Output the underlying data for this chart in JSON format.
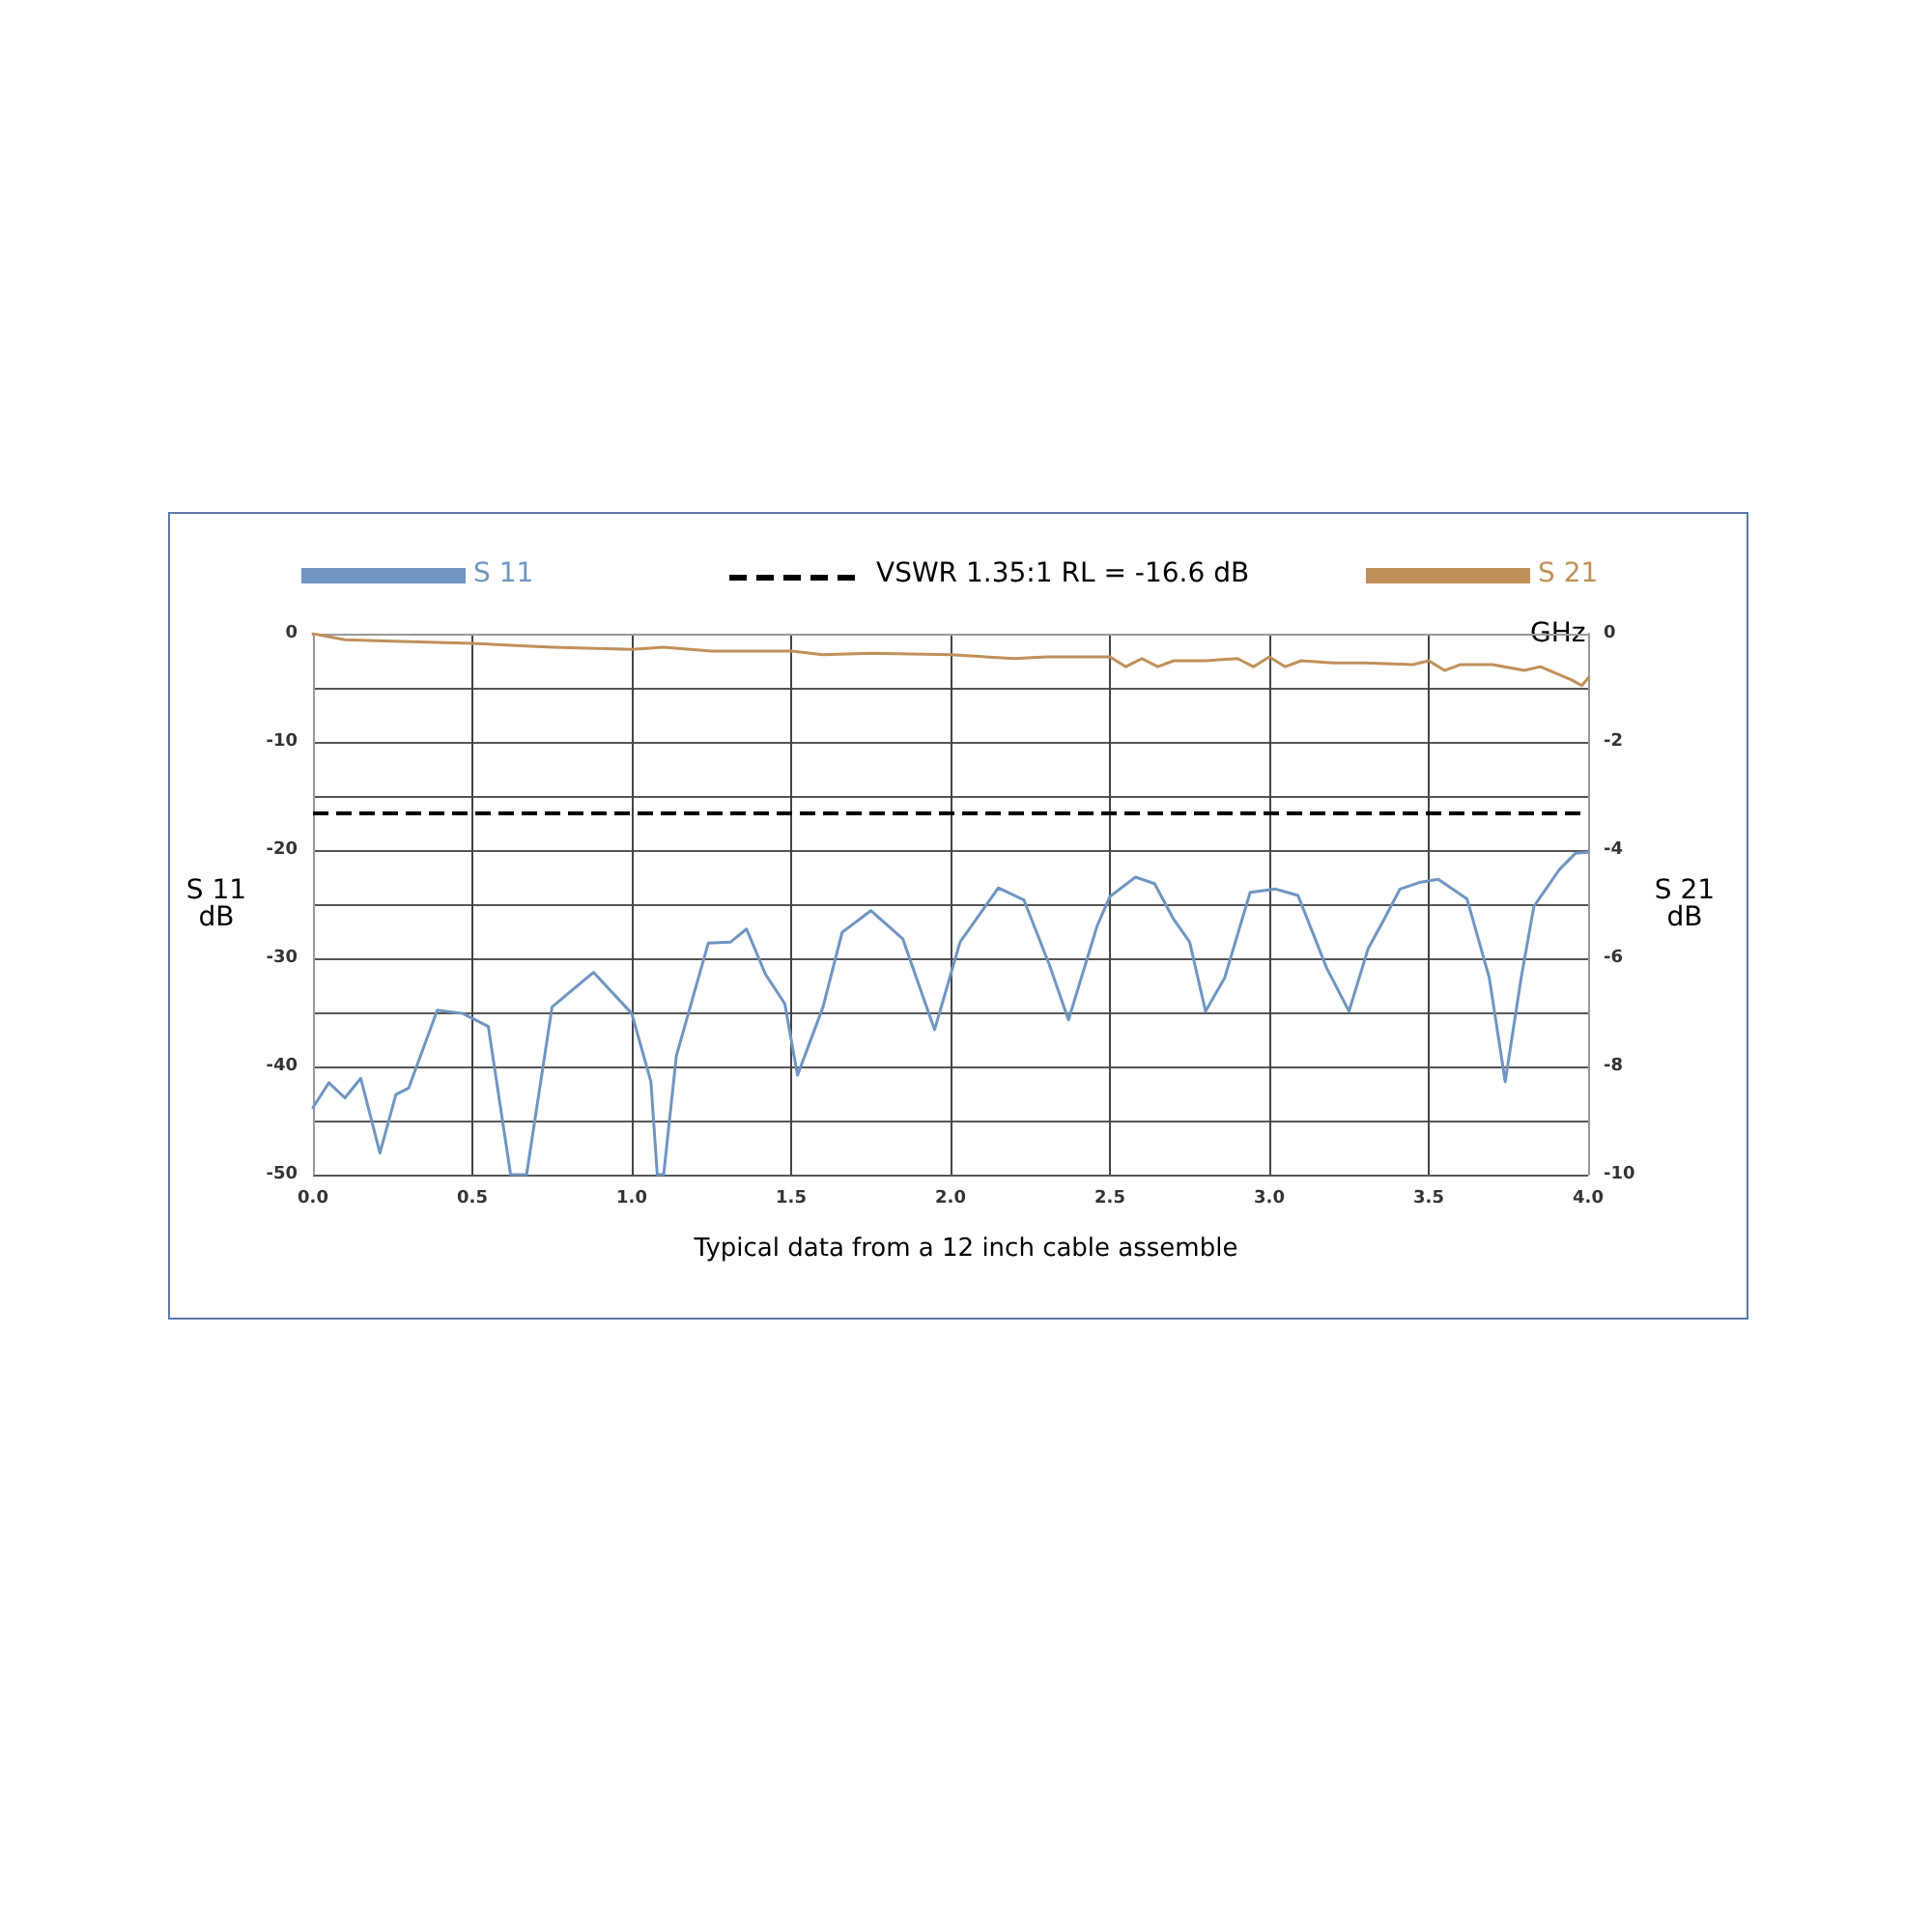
{
  "chart_data": {
    "type": "line",
    "xlabel": "GHz",
    "ylabel": "S 11\ndB",
    "y2label": "S 21\ndB",
    "annotations": [
      "Typical data from a 12 inch cable assemble"
    ],
    "xlim": [
      0,
      4
    ],
    "xticks": [
      {
        "value": 0,
        "label": "0.0"
      },
      0.5,
      {
        "value": 1,
        "label": "1.0"
      },
      1.5,
      {
        "value": 2,
        "label": "2.0"
      },
      2.5,
      {
        "value": 3,
        "label": "3.0"
      },
      3.5,
      {
        "value": 4,
        "label": "4.0"
      }
    ],
    "ylim": [
      -50,
      0
    ],
    "yticks": [
      -50,
      {
        "value": -45,
        "label": null
      },
      -40,
      {
        "value": -35,
        "label": null
      },
      -30,
      {
        "value": -25,
        "label": null
      },
      -20,
      {
        "value": -15,
        "label": null
      },
      -10,
      {
        "value": -5,
        "label": null
      },
      0
    ],
    "y2lim": [
      -10,
      0
    ],
    "y2ticks": [
      -10,
      -8,
      -6,
      -4,
      -2,
      0
    ],
    "grid": true,
    "legend": "top",
    "marker": "none",
    "line_style": "solid",
    "ref_lines": [
      {
        "axis": "y",
        "value": -16.6,
        "label": "VSWR 1.35:1 RL = -16.6 dB",
        "color": "#000000",
        "line_style": "dashed"
      }
    ],
    "series": [
      {
        "name": "S 11",
        "color": "#6f95c0",
        "x": [
          0,
          0.05,
          0.1,
          0.15,
          0.21,
          0.26,
          0.3,
          0.39,
          0.47,
          0.55,
          0.62,
          0.67,
          0.75,
          0.88,
          1.0,
          1.06,
          1.08,
          1.1,
          1.14,
          1.24,
          1.31,
          1.36,
          1.42,
          1.48,
          1.52,
          1.6,
          1.66,
          1.75,
          1.85,
          1.95,
          2.03,
          2.15,
          2.23,
          2.31,
          2.37,
          2.46,
          2.5,
          2.58,
          2.64,
          2.7,
          2.75,
          2.8,
          2.86,
          2.94,
          3.02,
          3.09,
          3.18,
          3.25,
          3.31,
          3.36,
          3.41,
          3.47,
          3.53,
          3.62,
          3.69,
          3.74,
          3.79,
          3.83,
          3.91,
          3.96,
          4.0
        ],
        "values": [
          -43.8,
          -41.5,
          -42.9,
          -41.1,
          -48,
          -42.6,
          -42,
          -34.8,
          -35.1,
          -36.3,
          -50,
          -50,
          -34.5,
          -31.3,
          -35.1,
          -41.4,
          -50,
          -50,
          -39,
          -28.6,
          -28.5,
          -27.3,
          -31.5,
          -34.2,
          -40.8,
          -34.5,
          -27.6,
          -25.6,
          -28.2,
          -36.6,
          -28.5,
          -23.5,
          -24.6,
          -30.6,
          -35.7,
          -27,
          -24.3,
          -22.5,
          -23.1,
          -26.4,
          -28.5,
          -34.9,
          -31.8,
          -23.9,
          -23.6,
          -24.2,
          -30.9,
          -34.9,
          -29.1,
          -26.4,
          -23.6,
          -23,
          -22.7,
          -24.5,
          -31.8,
          -41.4,
          -31.8,
          -25.2,
          -21.8,
          -20.3,
          -20.2
        ]
      },
      {
        "name": "S 21",
        "color": "#c0905a",
        "axis": "y2",
        "x": [
          0,
          0.1,
          0.25,
          0.5,
          0.75,
          1.0,
          1.1,
          1.25,
          1.5,
          1.6,
          1.75,
          2.0,
          2.2,
          2.3,
          2.5,
          2.55,
          2.6,
          2.65,
          2.7,
          2.8,
          2.9,
          2.95,
          3.0,
          3.05,
          3.1,
          3.2,
          3.3,
          3.45,
          3.5,
          3.55,
          3.6,
          3.7,
          3.8,
          3.85,
          3.95,
          3.98,
          4.0
        ],
        "values": [
          0,
          -0.11,
          -0.14,
          -0.18,
          -0.25,
          -0.29,
          -0.25,
          -0.32,
          -0.32,
          -0.39,
          -0.36,
          -0.39,
          -0.46,
          -0.43,
          -0.43,
          -0.61,
          -0.46,
          -0.61,
          -0.5,
          -0.5,
          -0.46,
          -0.61,
          -0.43,
          -0.61,
          -0.5,
          -0.54,
          -0.54,
          -0.57,
          -0.5,
          -0.68,
          -0.57,
          -0.57,
          -0.68,
          -0.61,
          -0.86,
          -0.96,
          -0.82
        ]
      }
    ]
  }
}
